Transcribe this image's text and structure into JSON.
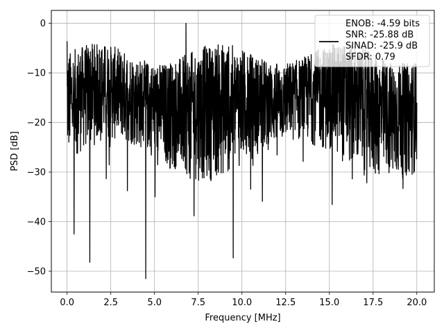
{
  "chart_data": {
    "type": "line",
    "title": "",
    "xlabel": "Frequency [MHz]",
    "ylabel": "PSD [dB]",
    "xlim": [
      -0.9,
      21.0
    ],
    "ylim": [
      -54.2,
      2.6
    ],
    "x_ticks": [
      0.0,
      2.5,
      5.0,
      7.5,
      10.0,
      12.5,
      15.0,
      17.5,
      20.0
    ],
    "x_tick_labels": [
      "0.0",
      "2.5",
      "5.0",
      "7.5",
      "10.0",
      "12.5",
      "15.0",
      "17.5",
      "20.0"
    ],
    "y_ticks": [
      0,
      -10,
      -20,
      -30,
      -40,
      -50
    ],
    "y_tick_labels": [
      "0",
      "−10",
      "−20",
      "−30",
      "−40",
      "−50"
    ],
    "grid": true,
    "legend_position": "top-right",
    "line_color": "#000000",
    "series": [
      {
        "name": "ENOB: -4.59 bits",
        "x_range": [
          0.0,
          20.0
        ],
        "notable_points": [
          {
            "x": 0.0,
            "y": -3.6
          },
          {
            "x": 0.4,
            "y": -42.5
          },
          {
            "x": 1.3,
            "y": -48.2
          },
          {
            "x": 4.5,
            "y": -51.5
          },
          {
            "x": 6.8,
            "y": 0.0
          },
          {
            "x": 9.5,
            "y": -47.3
          },
          {
            "x": 20.0,
            "y": -16.0
          }
        ],
        "typical_band": [
          -30,
          -5
        ],
        "visual_trend": "y_low = min(-33, -13 - 0.5*exp((x/20)*2)); y_high = max(-10, -3 + 0.15*exp((x/20)*2))"
      }
    ],
    "legend_entries": [
      "ENOB: -4.59 bits",
      "SNR: -25.88 dB",
      "SINAD: -25.9 dB",
      "SFDR: 0.79"
    ]
  }
}
